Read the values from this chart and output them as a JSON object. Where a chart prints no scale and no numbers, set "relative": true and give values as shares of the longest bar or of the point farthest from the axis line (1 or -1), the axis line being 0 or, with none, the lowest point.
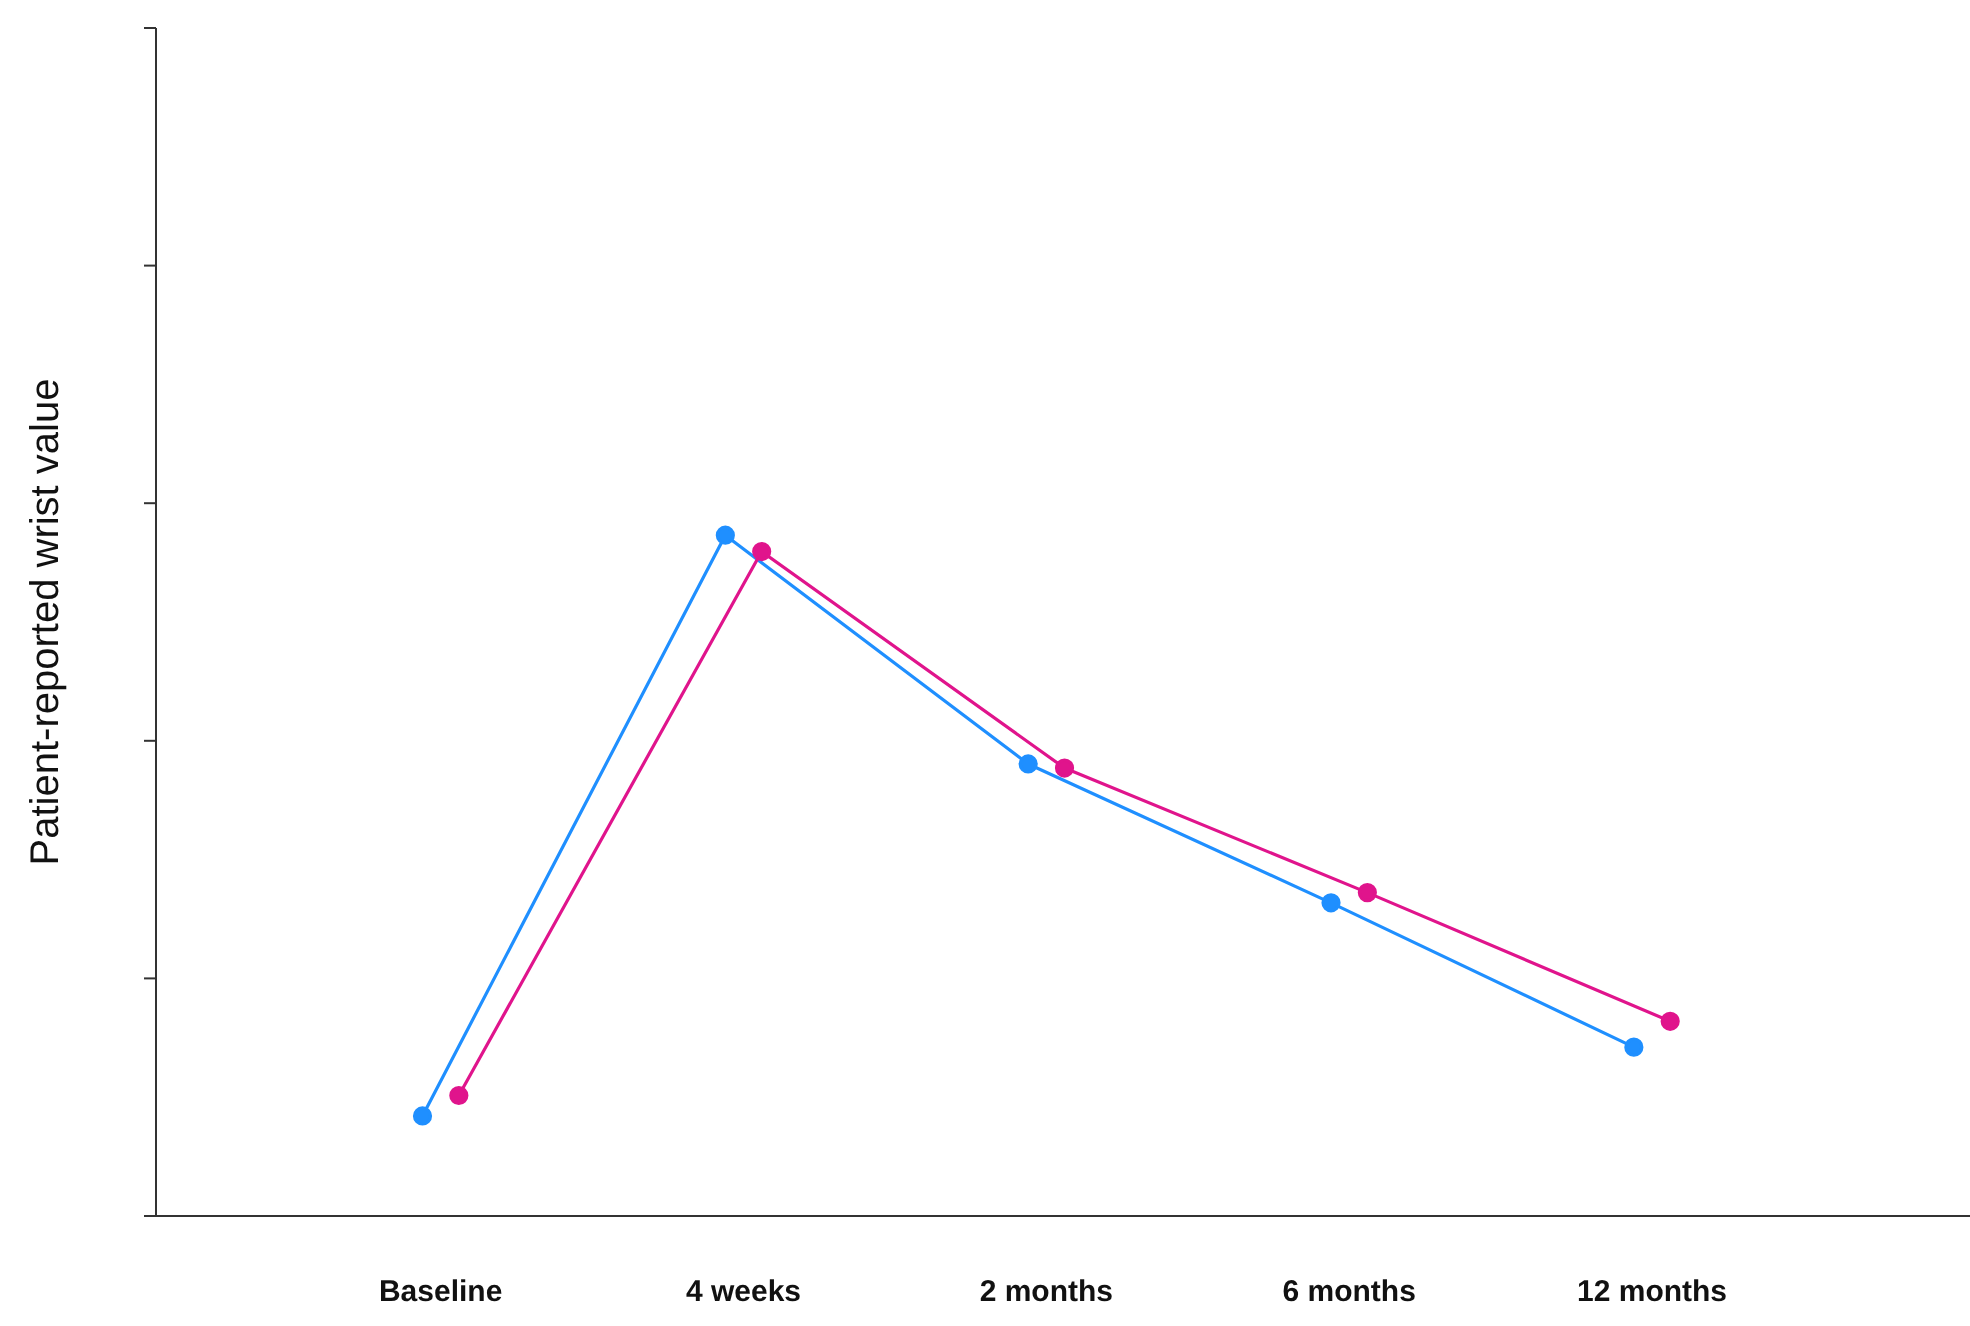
{
  "chart_data": {
    "type": "line",
    "ylabel": "Patient-reported wrist value",
    "categories": [
      "Baseline",
      "4 weeks",
      "2 months",
      "6 months",
      "12 months"
    ],
    "relative": true,
    "marker": "circle",
    "line_style": "solid",
    "series": [
      {
        "color": "#1f8fff",
        "values": [
          0.147,
          1,
          0.664,
          0.46,
          0.248
        ]
      },
      {
        "color": "#e0148c",
        "values": [
          0.177,
          0.976,
          0.658,
          0.475,
          0.286
        ]
      }
    ]
  }
}
